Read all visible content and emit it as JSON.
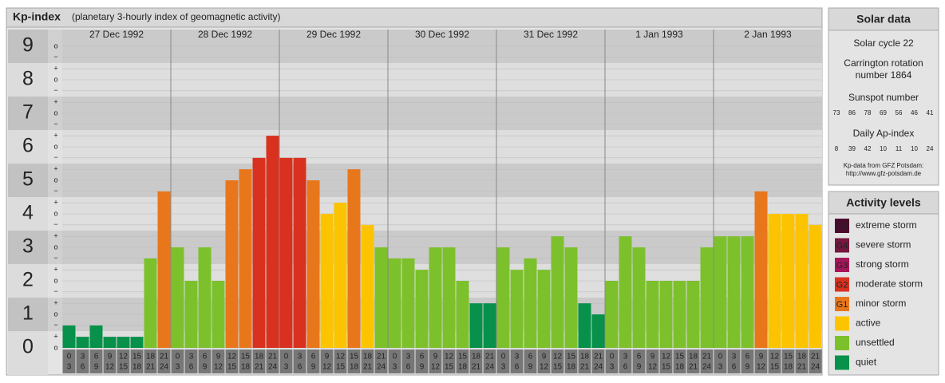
{
  "chart_data": {
    "type": "bar",
    "title": "Kp-index",
    "subtitle": "(planetary 3-hourly index of geomagnetic activity)",
    "ylim": [
      0,
      9.5
    ],
    "yticks": [
      0,
      1,
      2,
      3,
      4,
      5,
      6,
      7,
      8,
      9
    ],
    "minor_ticks": [
      {
        "value": 0,
        "label": "o"
      },
      {
        "value": 0.33,
        "label": "+"
      },
      {
        "value": 0.67,
        "label": "−"
      },
      {
        "value": 1,
        "label": "o"
      },
      {
        "value": 1.33,
        "label": "+"
      },
      {
        "value": 1.67,
        "label": "−"
      },
      {
        "value": 2,
        "label": "o"
      },
      {
        "value": 2.33,
        "label": "+"
      },
      {
        "value": 2.67,
        "label": "−"
      },
      {
        "value": 3,
        "label": "o"
      },
      {
        "value": 3.33,
        "label": "+"
      },
      {
        "value": 3.67,
        "label": "−"
      },
      {
        "value": 4,
        "label": "o"
      },
      {
        "value": 4.33,
        "label": "+"
      },
      {
        "value": 4.67,
        "label": "−"
      },
      {
        "value": 5,
        "label": "o"
      },
      {
        "value": 5.33,
        "label": "+"
      },
      {
        "value": 5.67,
        "label": "−"
      },
      {
        "value": 6,
        "label": "o"
      },
      {
        "value": 6.33,
        "label": "+"
      },
      {
        "value": 6.67,
        "label": "−"
      },
      {
        "value": 7,
        "label": "o"
      },
      {
        "value": 7.33,
        "label": "+"
      },
      {
        "value": 7.67,
        "label": "−"
      },
      {
        "value": 8,
        "label": "o"
      },
      {
        "value": 8.33,
        "label": "+"
      },
      {
        "value": 8.67,
        "label": "−"
      },
      {
        "value": 9,
        "label": "o"
      }
    ],
    "hours": [
      [
        "0",
        "3"
      ],
      [
        "3",
        "6"
      ],
      [
        "6",
        "9"
      ],
      [
        "9",
        "12"
      ],
      [
        "12",
        "15"
      ],
      [
        "15",
        "18"
      ],
      [
        "18",
        "21"
      ],
      [
        "21",
        "24"
      ]
    ],
    "groups": [
      {
        "label": "27 Dec 1992",
        "values": [
          0.67,
          0.33,
          0.67,
          0.33,
          0.33,
          0.33,
          2.67,
          4.67
        ],
        "colors": [
          "#07914a",
          "#07914a",
          "#07914a",
          "#07914a",
          "#07914a",
          "#07914a",
          "#7cc12c",
          "#e8771c"
        ]
      },
      {
        "label": "28 Dec 1992",
        "values": [
          3,
          2,
          3,
          2,
          5,
          5.33,
          5.67,
          6.33
        ],
        "colors": [
          "#7cc12c",
          "#7cc12c",
          "#7cc12c",
          "#7cc12c",
          "#e8771c",
          "#e8771c",
          "#d9311f",
          "#d9311f"
        ]
      },
      {
        "label": "29 Dec 1992",
        "values": [
          5.67,
          5.67,
          5,
          4,
          4.33,
          5.33,
          3.67,
          3
        ],
        "colors": [
          "#d9311f",
          "#d9311f",
          "#e8771c",
          "#fcc400",
          "#fcc400",
          "#e8771c",
          "#fcc400",
          "#7cc12c"
        ]
      },
      {
        "label": "30 Dec 1992",
        "values": [
          2.67,
          2.67,
          2.33,
          3,
          3,
          2,
          1.33,
          1.33
        ],
        "colors": [
          "#7cc12c",
          "#7cc12c",
          "#7cc12c",
          "#7cc12c",
          "#7cc12c",
          "#7cc12c",
          "#07914a",
          "#07914a"
        ]
      },
      {
        "label": "31 Dec 1992",
        "values": [
          3,
          2.33,
          2.67,
          2.33,
          3.33,
          3,
          1.33,
          1
        ],
        "colors": [
          "#7cc12c",
          "#7cc12c",
          "#7cc12c",
          "#7cc12c",
          "#7cc12c",
          "#7cc12c",
          "#07914a",
          "#07914a"
        ]
      },
      {
        "label": "1 Jan 1993",
        "values": [
          2,
          3.33,
          3,
          2,
          2,
          2,
          2,
          3
        ],
        "colors": [
          "#7cc12c",
          "#7cc12c",
          "#7cc12c",
          "#7cc12c",
          "#7cc12c",
          "#7cc12c",
          "#7cc12c",
          "#7cc12c"
        ]
      },
      {
        "label": "2 Jan 1993",
        "values": [
          3.33,
          3.33,
          3.33,
          4.67,
          4,
          4,
          4,
          3.67
        ],
        "colors": [
          "#7cc12c",
          "#7cc12c",
          "#7cc12c",
          "#e8771c",
          "#fcc400",
          "#fcc400",
          "#fcc400",
          "#fcc400"
        ]
      }
    ]
  },
  "solar_data": {
    "title": "Solar data",
    "cycle": "Solar cycle 22",
    "carrington": [
      "Carrington rotation",
      "number 1864"
    ],
    "sunspot_title": "Sunspot number",
    "sunspot": [
      "73",
      "86",
      "78",
      "69",
      "56",
      "46",
      "41"
    ],
    "ap_title": "Daily Ap-index",
    "ap": [
      "8",
      "39",
      "42",
      "10",
      "11",
      "10",
      "24"
    ],
    "source": [
      "Kp-data from GFZ Potsdam:",
      "http://www.gfz-potsdam.de"
    ]
  },
  "activity_levels": {
    "title": "Activity levels",
    "items": [
      {
        "badge": "G5",
        "label": "extreme storm",
        "color": "#4a0c2c"
      },
      {
        "badge": "G4",
        "label": "severe storm",
        "color": "#75173e"
      },
      {
        "badge": "G3",
        "label": "strong storm",
        "color": "#a6175a"
      },
      {
        "badge": "G2",
        "label": "moderate storm",
        "color": "#d9311f"
      },
      {
        "badge": "G1",
        "label": "minor storm",
        "color": "#e8771c"
      },
      {
        "label": "active",
        "color": "#fcc400"
      },
      {
        "label": "unsettled",
        "color": "#7cc12c"
      },
      {
        "label": "quiet",
        "color": "#07914a"
      }
    ]
  }
}
